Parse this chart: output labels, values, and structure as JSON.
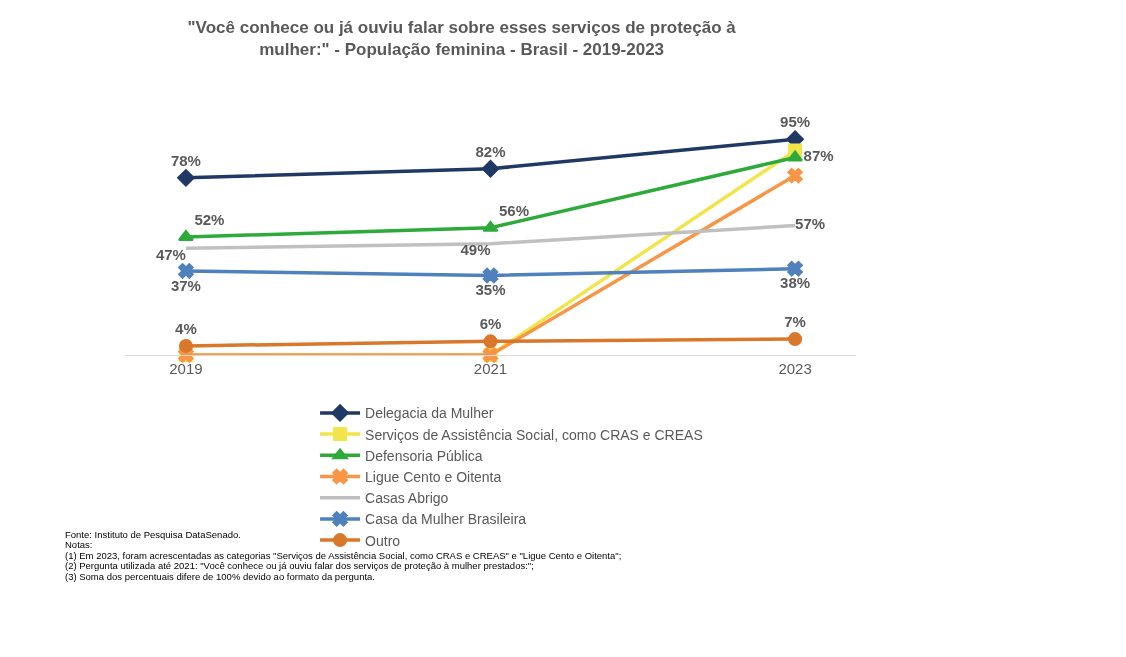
{
  "chart_data": {
    "type": "line",
    "title": "\"Você conhece ou já ouviu falar sobre esses serviços de proteção à mulher:\" - População feminina - Brasil - 2019-2023",
    "categories": [
      "2019",
      "2021",
      "2023"
    ],
    "series": [
      {
        "name": "Delegacia da Mulher",
        "color": "#1f3864",
        "marker": "diamond",
        "values": [
          78,
          82,
          95
        ],
        "value_labels": [
          "78%",
          "82%",
          "95%"
        ]
      },
      {
        "name": "Serviços de Assistência Social, como CRAS e CREAS",
        "color": "#f2e54b",
        "marker": "square",
        "values": [
          0,
          0,
          90
        ],
        "value_labels": [
          null,
          null,
          null
        ]
      },
      {
        "name": "Defensoria Pública",
        "color": "#2eaa3a",
        "marker": "triangle",
        "values": [
          52,
          56,
          87
        ],
        "value_labels": [
          "52%",
          "56%",
          "87%"
        ]
      },
      {
        "name": "Ligue Cento e Oitenta",
        "color": "#f79646",
        "marker": "cross",
        "values": [
          0,
          0,
          79
        ],
        "value_labels": [
          null,
          null,
          null
        ]
      },
      {
        "name": "Casas Abrigo",
        "color": "#c0c0c0",
        "marker": "none",
        "values": [
          47,
          49,
          57
        ],
        "value_labels": [
          "47%",
          "49%",
          "57%"
        ]
      },
      {
        "name": "Casa da Mulher Brasileira",
        "color": "#4f81bd",
        "marker": "cross",
        "values": [
          37,
          35,
          38
        ],
        "value_labels": [
          "37%",
          "35%",
          "38%"
        ]
      },
      {
        "name": "Outro",
        "color": "#d9772b",
        "marker": "circle",
        "values": [
          4,
          6,
          7
        ],
        "value_labels": [
          "4%",
          "6%",
          "7%"
        ]
      }
    ],
    "legend": "bottom",
    "grid": false,
    "annotations": [
      "Fonte: Instituto de Pesquisa DataSenado.",
      "Notas:",
      "(1) Em 2023, foram acrescentadas as categorias \"Serviços de Assistência Social, como CRAS e CREAS\" e \"Ligue Cento e Oitenta\";",
      "(2) Pergunta utilizada até 2021: \"Você conhece ou já ouviu falar dos serviços de proteção à mulher prestados:\";",
      "(3) Soma dos percentuais difere de 100% devido ao formato da pergunta."
    ]
  }
}
